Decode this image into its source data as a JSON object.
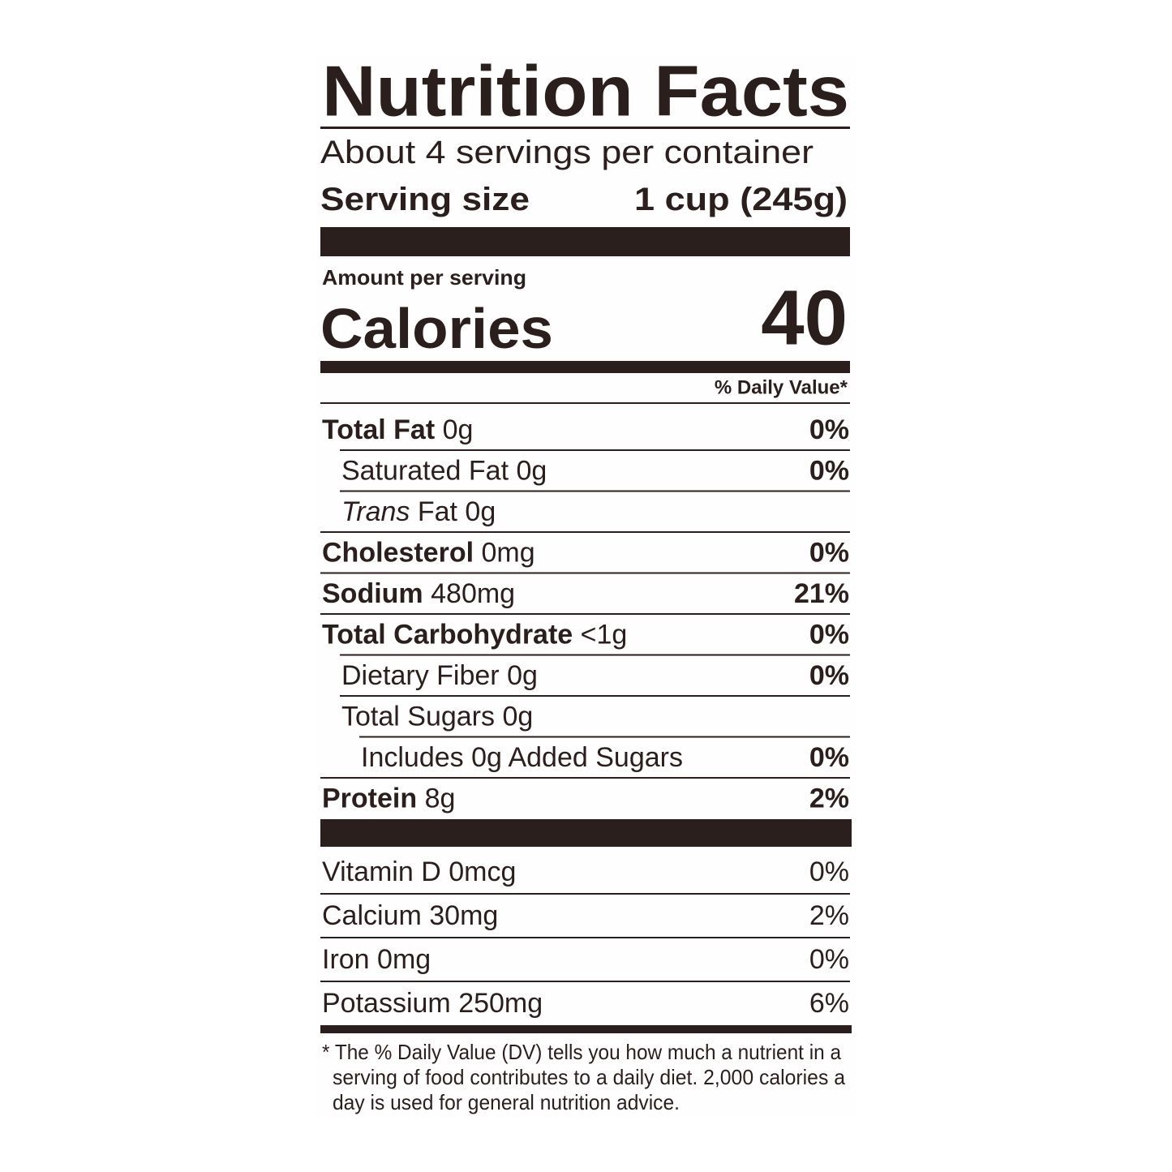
{
  "title": "Nutrition Facts",
  "servings_per_container": "About 4 servings per container",
  "serving_size": {
    "label": "Serving size",
    "value": "1 cup (245g)"
  },
  "amount_per_serving": "Amount per serving",
  "calories": {
    "label": "Calories",
    "value": "40"
  },
  "daily_value_header": "% Daily Value*",
  "nutrients": [
    {
      "name": "Total Fat",
      "amount": "0g",
      "dv": "0%",
      "sub": [
        {
          "name": "Saturated Fat",
          "amount": "0g",
          "dv": "0%"
        },
        {
          "name_italic": "Trans",
          "name": "Fat",
          "amount": "0g"
        }
      ]
    },
    {
      "name": "Cholesterol",
      "amount": "0mg",
      "dv": "0%"
    },
    {
      "name": "Sodium",
      "amount": "480mg",
      "dv": "21%"
    },
    {
      "name": "Total Carbohydrate",
      "amount": "<1g",
      "dv": "0%",
      "sub": [
        {
          "name": "Dietary Fiber",
          "amount": "0g",
          "dv": "0%"
        },
        {
          "name": "Total Sugars",
          "amount": "0g",
          "sub": [
            {
              "text": "Includes 0g Added Sugars",
              "dv": "0%"
            }
          ]
        }
      ]
    },
    {
      "name": "Protein",
      "amount": "8g",
      "dv": "2%"
    }
  ],
  "vitamins": [
    {
      "name": "Vitamin D",
      "amount": "0mcg",
      "dv": "0%"
    },
    {
      "name": "Calcium",
      "amount": "30mg",
      "dv": "2%"
    },
    {
      "name": "Iron",
      "amount": "0mg",
      "dv": "0%"
    },
    {
      "name": "Potassium",
      "amount": "250mg",
      "dv": "6%"
    }
  ],
  "footnote": [
    "* The % Daily Value (DV) tells you how much a nutrient in a",
    "serving of food contributes to a daily diet. 2,000 calories a",
    "day is used for general nutrition advice."
  ]
}
